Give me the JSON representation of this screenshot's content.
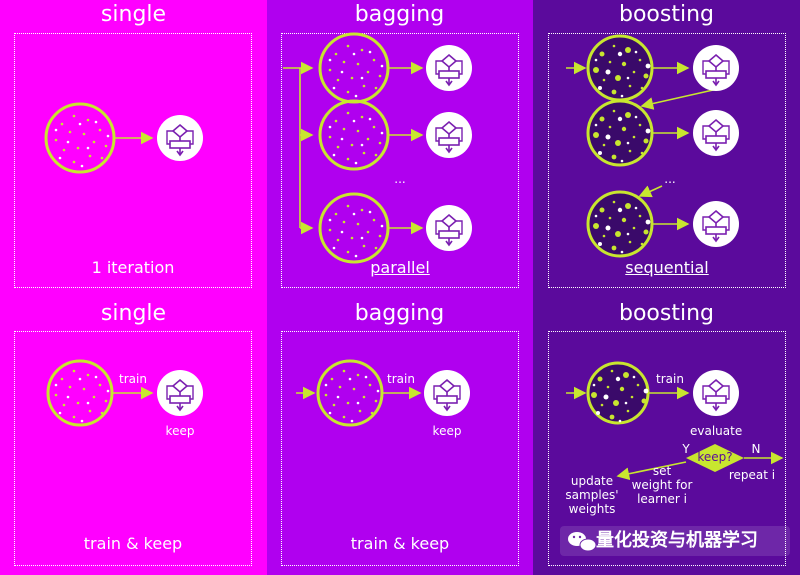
{
  "top": {
    "single": {
      "title": "single",
      "caption": "1 iteration"
    },
    "bagging": {
      "title": "bagging",
      "caption": "parallel",
      "dots": "..."
    },
    "boosting": {
      "title": "boosting",
      "caption": "sequential",
      "dots": "..."
    }
  },
  "bottom": {
    "single": {
      "title": "single",
      "train": "train",
      "keep": "keep",
      "caption": "train & keep"
    },
    "bagging": {
      "title": "bagging",
      "train": "train",
      "keep": "keep",
      "caption": "train & keep"
    },
    "boosting": {
      "title": "boosting",
      "train": "train",
      "evaluate": "evaluate",
      "decision": "keep?",
      "yes": "Y",
      "no": "N",
      "repeat": "repeat i",
      "set_weight": "set\nweight for\nlearner i",
      "update_weights": "update\nsamples'\nweights"
    }
  },
  "watermark": "量化投资与机器学习",
  "colors": {
    "single_bg": "#ff00ff",
    "bagging_bg": "#b000ef",
    "boosting_bg": "#5b0a9c",
    "accent": "#c8e62f",
    "white": "#ffffff"
  },
  "icons": [
    "dataset-circle",
    "learner-flowchart-icon",
    "wechat-icon"
  ]
}
